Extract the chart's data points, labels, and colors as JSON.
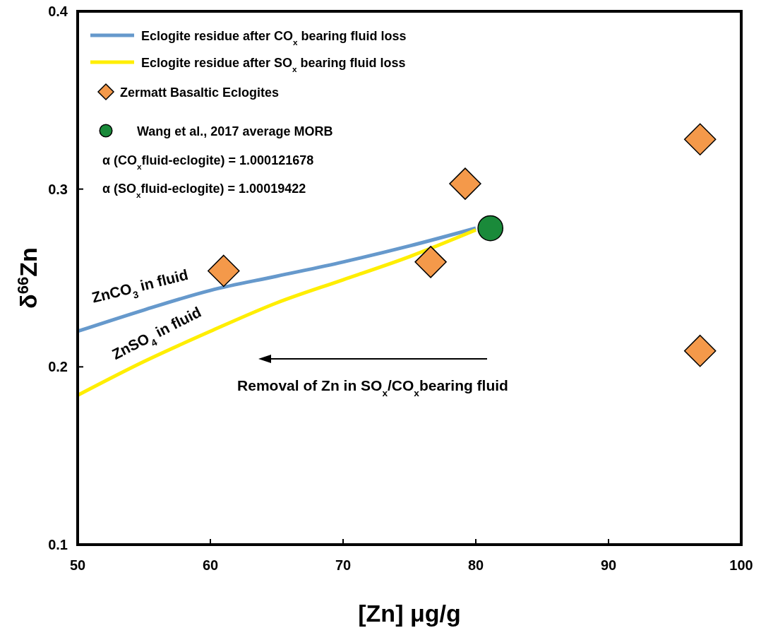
{
  "chart_data": {
    "type": "line",
    "xlabel": "[Zn] μg/g",
    "ylabel": "δ$^{66}$Zn",
    "xlim": [
      50,
      100
    ],
    "ylim": [
      0.1,
      0.4
    ],
    "xticks": [
      50,
      60,
      70,
      80,
      90,
      100
    ],
    "yticks": [
      0.1,
      0.2,
      0.3,
      0.4
    ],
    "grid": false,
    "legend": "top left",
    "series": [
      {
        "name": "Eclogite residue after CO$_{x}$ bearing fluid loss",
        "color": "#6699cc",
        "marker": "none",
        "line_style": "solid",
        "x": [
          50,
          55,
          60,
          65,
          70,
          75,
          80
        ],
        "values": [
          0.22,
          0.232,
          0.243,
          0.251,
          0.259,
          0.268,
          0.278
        ]
      },
      {
        "name": "Eclogite residue after SO$_{x}$ bearing fluid loss",
        "color": "#ffee00",
        "marker": "none",
        "line_style": "solid",
        "x": [
          50,
          55,
          60,
          65,
          70,
          75,
          80
        ],
        "values": [
          0.184,
          0.203,
          0.22,
          0.236,
          0.249,
          0.262,
          0.277
        ]
      },
      {
        "name": "Zermatt Basaltic Eclogites",
        "type": "scatter",
        "color": "#f4994a",
        "marker": "diamond",
        "x": [
          61,
          76.6,
          79.2,
          96.9,
          96.9
        ],
        "values": [
          0.254,
          0.259,
          0.303,
          0.328,
          0.209
        ]
      },
      {
        "name": "Wang et al., 2017 average MORB",
        "type": "scatter",
        "color": "#1a8a3a",
        "marker": "circle",
        "x": [
          81.1
        ],
        "values": [
          0.278
        ]
      }
    ],
    "annotations": [
      "α (CO$_{x}$fluid-eclogite) = 1.000121678",
      "α (SO$_{x}$fluid-eclogite) = 1.00019422",
      "ZnCO$_{3}$ in fluid",
      "ZnSO$_{4}$ in fluid",
      "Removal of Zn in SO$_{x}$/CO$_{x}$bearing fluid"
    ]
  }
}
